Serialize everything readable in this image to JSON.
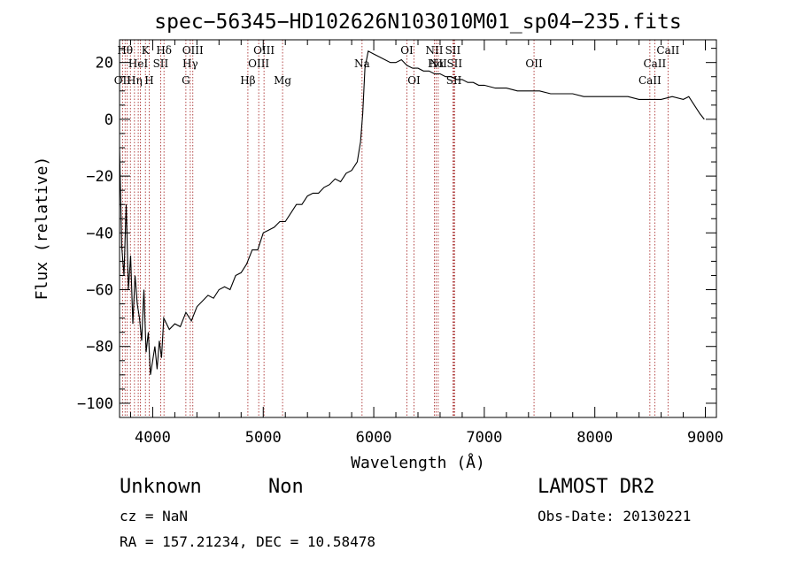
{
  "chart_data": {
    "type": "line",
    "title": "spec−56345−HD102626N103010M01_sp04−235.fits",
    "xlabel": "Wavelength (Å)",
    "ylabel": "Flux (relative)",
    "xlim": [
      3700,
      9100
    ],
    "ylim": [
      -105,
      28
    ],
    "xticks": [
      4000,
      5000,
      6000,
      7000,
      8000,
      9000
    ],
    "yticks": [
      -100,
      -80,
      -60,
      -40,
      -20,
      0,
      20
    ],
    "xtick_labels": [
      "4000",
      "5000",
      "6000",
      "7000",
      "8000",
      "9000"
    ],
    "ytick_labels": [
      "−100",
      "−80",
      "−60",
      "−40",
      "−20",
      "0",
      "20"
    ],
    "grid": false,
    "legend": "none",
    "series": [
      {
        "x": [
          3700,
          3720,
          3740,
          3760,
          3780,
          3800,
          3820,
          3840,
          3860,
          3880,
          3900,
          3920,
          3940,
          3960,
          3980,
          4000,
          4020,
          4040,
          4060,
          4080,
          4100,
          4150,
          4200,
          4250,
          4300,
          4350,
          4400,
          4450,
          4500,
          4550,
          4600,
          4650,
          4700,
          4750,
          4800,
          4850,
          4900,
          4950,
          5000,
          5050,
          5100,
          5150,
          5200,
          5250,
          5300,
          5350,
          5400,
          5450,
          5500,
          5550,
          5600,
          5650,
          5700,
          5750,
          5800,
          5850,
          5880,
          5900,
          5920,
          5950,
          6000,
          6050,
          6100,
          6150,
          6200,
          6250,
          6300,
          6350,
          6400,
          6450,
          6500,
          6550,
          6600,
          6650,
          6700,
          6750,
          6800,
          6850,
          6900,
          6950,
          7000,
          7100,
          7200,
          7300,
          7400,
          7500,
          7600,
          7700,
          7800,
          7900,
          8000,
          8100,
          8200,
          8300,
          8400,
          8500,
          8600,
          8700,
          8800,
          8850,
          8900,
          8950,
          8990
        ],
        "y": [
          -10,
          -45,
          -55,
          -30,
          -60,
          -48,
          -72,
          -55,
          -65,
          -70,
          -78,
          -60,
          -82,
          -75,
          -90,
          -85,
          -80,
          -88,
          -78,
          -84,
          -70,
          -74,
          -72,
          -73,
          -68,
          -71,
          -66,
          -64,
          -62,
          -63,
          -60,
          -59,
          -60,
          -55,
          -54,
          -51,
          -46,
          -46,
          -40,
          -39,
          -38,
          -36,
          -36,
          -33,
          -30,
          -30,
          -27,
          -26,
          -26,
          -24,
          -23,
          -21,
          -22,
          -19,
          -18,
          -15,
          -8,
          2,
          18,
          24,
          23,
          22,
          21,
          20,
          20,
          21,
          19,
          18,
          18,
          17,
          17,
          16,
          16,
          15,
          15,
          14,
          14,
          13,
          13,
          12,
          12,
          11,
          11,
          10,
          10,
          10,
          9,
          9,
          9,
          8,
          8,
          8,
          8,
          8,
          7,
          7,
          7,
          8,
          7,
          8,
          5,
          2,
          0
        ]
      }
    ],
    "lines": [
      {
        "x": 3727,
        "label": "OII",
        "row": 3
      },
      {
        "x": 3750,
        "label": "Hθ",
        "row": 1
      },
      {
        "x": 3770,
        "label": "",
        "row": 0
      },
      {
        "x": 3798,
        "label": "",
        "row": 0
      },
      {
        "x": 3835,
        "label": "Hη",
        "row": 3
      },
      {
        "x": 3869,
        "label": "HeI",
        "row": 2
      },
      {
        "x": 3889,
        "label": "",
        "row": 0
      },
      {
        "x": 3934,
        "label": "K",
        "row": 1
      },
      {
        "x": 3968,
        "label": "H",
        "row": 3
      },
      {
        "x": 4072,
        "label": "SII",
        "row": 2
      },
      {
        "x": 4102,
        "label": "Hδ",
        "row": 1
      },
      {
        "x": 4300,
        "label": "G",
        "row": 3
      },
      {
        "x": 4340,
        "label": "Hγ",
        "row": 2
      },
      {
        "x": 4363,
        "label": "OIII",
        "row": 1
      },
      {
        "x": 4861,
        "label": "Hβ",
        "row": 3
      },
      {
        "x": 4959,
        "label": "OIII",
        "row": 2
      },
      {
        "x": 5007,
        "label": "OIII",
        "row": 1
      },
      {
        "x": 5175,
        "label": "Mg",
        "row": 3
      },
      {
        "x": 5894,
        "label": "Na",
        "row": 2
      },
      {
        "x": 6300,
        "label": "OI",
        "row": 1
      },
      {
        "x": 6364,
        "label": "OI",
        "row": 3
      },
      {
        "x": 6548,
        "label": "NII",
        "row": 1
      },
      {
        "x": 6563,
        "label": "Hα",
        "row": 2
      },
      {
        "x": 6583,
        "label": "NII",
        "row": 2
      },
      {
        "x": 6716,
        "label": "SII",
        "row": 1
      },
      {
        "x": 6731,
        "label": "SII",
        "row": 2
      },
      {
        "x": 6725,
        "label": "SII",
        "row": 3
      },
      {
        "x": 7450,
        "label": "OII",
        "row": 2
      },
      {
        "x": 8498,
        "label": "CaII",
        "row": 3
      },
      {
        "x": 8542,
        "label": "CaII",
        "row": 2
      },
      {
        "x": 8662,
        "label": "CaII",
        "row": 1
      }
    ]
  },
  "info": {
    "class_label": "Unknown",
    "subclass_label": "Non",
    "survey": "LAMOST DR2",
    "cz": "cz = NaN",
    "obs_date": "Obs-Date: 20130221",
    "coords": "RA = 157.21234, DEC =  10.58478"
  }
}
